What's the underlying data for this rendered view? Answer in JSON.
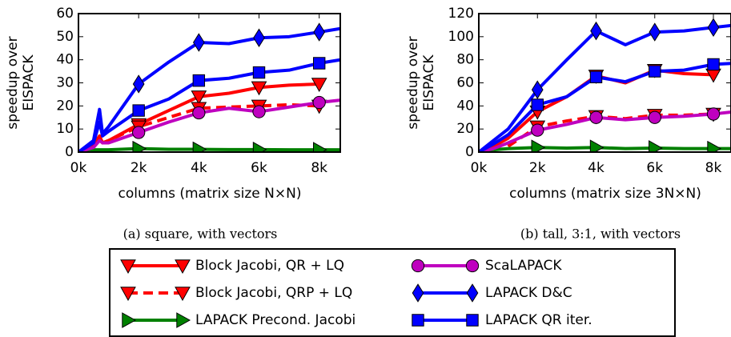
{
  "chart_data": [
    {
      "type": "line",
      "caption": "(a) square, with vectors",
      "ylabel": [
        "speedup over",
        "EISPACK"
      ],
      "xlabel": "columns (matrix size N×N)",
      "x": [
        0,
        500,
        700,
        800,
        1000,
        2000,
        3000,
        4000,
        5000,
        6000,
        7000,
        8000,
        8700
      ],
      "xlim": [
        0,
        8700
      ],
      "xticks": [
        {
          "value": 0,
          "label": "0k"
        },
        {
          "value": 2000,
          "label": "2k"
        },
        {
          "value": 4000,
          "label": "4k"
        },
        {
          "value": 6000,
          "label": "6k"
        },
        {
          "value": 8000,
          "label": "8k"
        }
      ],
      "ylim": [
        0,
        60
      ],
      "yticks": [
        0,
        10,
        20,
        30,
        40,
        50,
        60
      ],
      "series": [
        {
          "name": "Block Jacobi, QR + LQ",
          "color": "#ff0000",
          "marker": "triangle_down",
          "dash": "solid",
          "values": [
            0,
            3,
            7,
            4,
            5,
            12,
            18,
            24,
            25.5,
            28,
            29,
            29.5,
            null
          ]
        },
        {
          "name": "Block Jacobi, QRP + LQ",
          "color": "#ff0000",
          "marker": "triangle_down",
          "dash": "dashed",
          "values": [
            0,
            2,
            6,
            4,
            5,
            11,
            15,
            19,
            19.5,
            20,
            20.5,
            20,
            null
          ]
        },
        {
          "name": "LAPACK Precond. Jacobi",
          "color": "#008000",
          "marker": "triangle_right",
          "dash": "solid",
          "values": [
            0,
            1,
            1,
            1,
            1,
            1.5,
            1.2,
            1.2,
            1.1,
            1.1,
            1,
            1,
            1
          ]
        },
        {
          "name": "ScaLAPACK",
          "color": "#bf00bf",
          "marker": "circle",
          "dash": "solid",
          "values": [
            0,
            2,
            5,
            4,
            4,
            8.5,
            13,
            17,
            19,
            17.5,
            19.5,
            21.5,
            22.5
          ]
        },
        {
          "name": "LAPACK D&C",
          "color": "#0000ff",
          "marker": "diamond",
          "dash": "solid",
          "values": [
            0,
            5,
            18.5,
            8,
            11,
            29.5,
            39,
            47.5,
            47,
            49.5,
            50,
            52,
            53.5
          ]
        },
        {
          "name": "LAPACK QR iter.",
          "color": "#0000ff",
          "marker": "square",
          "dash": "solid",
          "values": [
            0,
            4,
            13,
            7,
            9,
            18,
            23,
            31,
            32,
            34.5,
            35.5,
            38.5,
            40
          ]
        }
      ]
    },
    {
      "type": "line",
      "caption": "(b) tall, 3:1, with vectors",
      "ylabel": [
        "speedup over",
        "EISPACK"
      ],
      "xlabel": "columns (matrix size 3N×N)",
      "x": [
        0,
        500,
        1000,
        2000,
        3000,
        4000,
        5000,
        6000,
        7000,
        8000,
        8700
      ],
      "xlim": [
        0,
        8600
      ],
      "xticks": [
        {
          "value": 0,
          "label": "0k"
        },
        {
          "value": 2000,
          "label": "2k"
        },
        {
          "value": 4000,
          "label": "4k"
        },
        {
          "value": 6000,
          "label": "6k"
        },
        {
          "value": 8000,
          "label": "8k"
        }
      ],
      "ylim": [
        0,
        120
      ],
      "yticks": [
        0,
        20,
        40,
        60,
        80,
        100,
        120
      ],
      "series": [
        {
          "name": "Block Jacobi, QR + LQ",
          "color": "#ff0000",
          "marker": "triangle_down",
          "dash": "solid",
          "values": [
            0,
            5,
            12,
            35,
            48,
            66,
            60,
            71,
            68,
            67,
            null
          ]
        },
        {
          "name": "Block Jacobi, QRP + LQ",
          "color": "#ff0000",
          "marker": "triangle_down",
          "dash": "dashed",
          "values": [
            null,
            null,
            5,
            22,
            27,
            31,
            29,
            32,
            32,
            33,
            null
          ]
        },
        {
          "name": "LAPACK Precond. Jacobi",
          "color": "#008000",
          "marker": "triangle_right",
          "dash": "solid",
          "values": [
            0,
            2,
            3,
            4,
            3.5,
            4,
            3,
            3.5,
            3,
            3,
            3
          ]
        },
        {
          "name": "ScaLAPACK",
          "color": "#bf00bf",
          "marker": "circle",
          "dash": "solid",
          "values": [
            0,
            3,
            8,
            19,
            24,
            30,
            28,
            30,
            31,
            33,
            35
          ]
        },
        {
          "name": "LAPACK D&C",
          "color": "#0000ff",
          "marker": "diamond",
          "dash": "solid",
          "values": [
            0,
            10,
            20,
            54,
            80,
            105,
            93,
            104,
            105,
            108,
            110
          ]
        },
        {
          "name": "LAPACK QR iter.",
          "color": "#0000ff",
          "marker": "square",
          "dash": "solid",
          "values": [
            0,
            7,
            15,
            41,
            48,
            65,
            61,
            70,
            71,
            76,
            77
          ]
        }
      ]
    }
  ]
}
